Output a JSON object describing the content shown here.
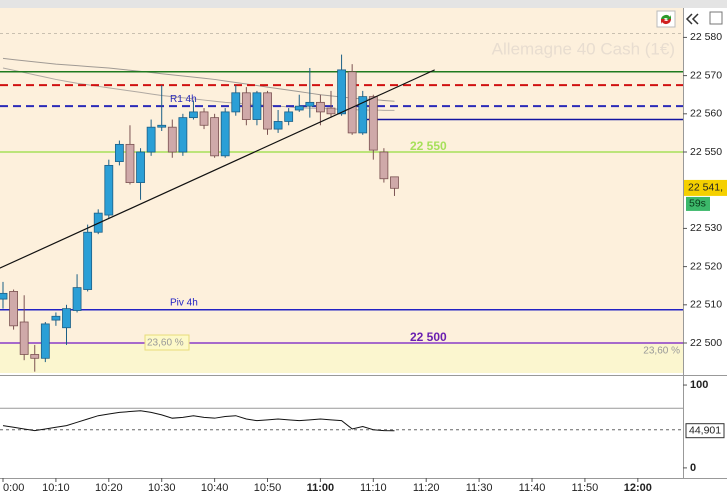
{
  "chart_data": {
    "type": "candlestick",
    "instrument": "Allemagne 40 Cash (1€)",
    "categories": [
      null,
      null,
      null,
      null,
      null,
      null,
      null,
      null,
      null,
      null,
      null,
      null,
      null,
      null,
      null,
      null,
      null,
      null,
      null,
      null,
      null,
      null,
      null,
      null,
      null,
      null,
      null,
      null,
      null,
      null,
      null,
      null,
      null,
      null,
      null,
      null,
      null,
      null
    ],
    "open": [
      22511.5,
      22513.5,
      22505.5,
      22497,
      22496,
      22506,
      22504,
      22508.5,
      22514,
      22529,
      22533.5,
      22547.5,
      22552,
      22542,
      22550,
      22556.5,
      22556.5,
      22550,
      22559,
      22560.5,
      22559,
      22549,
      22560.5,
      22565.5,
      22558.5,
      22565.5,
      22556,
      22558,
      22561,
      22562,
      22563,
      22561.5,
      22560,
      22571,
      22555,
      22564.5,
      22550,
      22543.5
    ],
    "high": [
      22516,
      22514,
      22512.5,
      22499.5,
      22505.5,
      22508,
      22510,
      22518,
      22531,
      22535,
      22548,
      22553,
      22557,
      22551,
      22558.5,
      22567.5,
      22558.5,
      22560,
      22563.5,
      22561.5,
      22560,
      22561.5,
      22567.5,
      22567,
      22566,
      22566,
      22561,
      22561.5,
      22565,
      22572,
      22565,
      22566,
      22575.5,
      22573,
      22566,
      22565,
      22551,
      22543.5
    ],
    "low": [
      22509,
      22503.5,
      22495.5,
      22492.5,
      22495,
      22504.5,
      22499.5,
      22508,
      22513.5,
      22528.5,
      22532.5,
      22546.5,
      22541.5,
      22537.5,
      22549,
      22555.5,
      22548.5,
      22549,
      22558.5,
      22556,
      22548.5,
      22548.5,
      22559.5,
      22557,
      22557,
      22554.5,
      22555,
      22557,
      22560.5,
      22559,
      22557,
      22559,
      22559.5,
      22554.5,
      22554.5,
      22548,
      22542,
      22538.5
    ],
    "close": [
      22513,
      22504.5,
      22497,
      22496,
      22505,
      22507,
      22509,
      22514.5,
      22529,
      22534,
      22546.5,
      22552,
      22542,
      22550,
      22556.5,
      22557,
      22550,
      22559,
      22560.5,
      22557,
      22549,
      22560.5,
      22565.5,
      22558.5,
      22565.5,
      22556,
      22558,
      22560.5,
      22562,
      22563,
      22560.5,
      22560,
      22571.5,
      22555,
      22564.5,
      22550.5,
      22543,
      22540.5
    ],
    "up_color": "#2b9fd6",
    "down_color": "#cfa9a9",
    "moving_averages": [
      {
        "color": "#a09a94",
        "values": [
          22574.5,
          22574.2,
          22573.9,
          22573.6,
          22573.3,
          22573.0,
          22572.8,
          22572.6,
          22572.4,
          22572.2,
          22572.0,
          22571.7,
          22571.4,
          22571.1,
          22570.8,
          22570.5,
          22570.2,
          22569.9,
          22569.6,
          22569.3,
          22569.0,
          22568.6,
          22568.2,
          22567.8,
          22567.4,
          22567.0,
          22566.6,
          22566.2,
          22565.8,
          22565.4,
          22565.0,
          22564.7,
          22564.4,
          22564.1,
          22563.9,
          22563.7,
          22563.5,
          22563.3
        ]
      },
      {
        "color": "#b0a9a2",
        "values": [
          22572.0,
          22571.4,
          22570.8,
          22570.2,
          22569.6,
          22569.0,
          22568.5,
          22568.0,
          22567.6,
          22567.2,
          22566.8,
          22566.4,
          22566.0,
          22565.6,
          22565.2,
          22564.8,
          22564.5,
          22564.2,
          22563.9,
          22563.6,
          22563.3,
          22563.0,
          22562.8,
          22562.6,
          22562.4,
          22562.2,
          22562.0,
          22561.8,
          22561.6,
          22561.5,
          22561.4,
          22561.3,
          22561.2,
          22561.1,
          22561.0,
          22561.0,
          22560.9,
          22560.9
        ]
      }
    ],
    "trend_line": {
      "x": [
        -0.3,
        40.8
      ],
      "y": [
        22519.6,
        22571.5
      ],
      "color": "#111111"
    },
    "levels": [
      {
        "value": 22571,
        "color": "#1f7a1f"
      },
      {
        "value": 22567.5,
        "color": "#d01010",
        "dash": true
      },
      {
        "value": 22562,
        "color": "#2a2ab8",
        "dash": true,
        "name": "R1 4h"
      },
      {
        "value": 22558.5,
        "color": "#1414a0",
        "from": 34
      },
      {
        "value": 22550,
        "color": "#a6e05a",
        "label": "22 550"
      },
      {
        "value": 22508.7,
        "color": "#2222c4",
        "name": "Piv 4h"
      },
      {
        "value": 22500,
        "color": "#8a3cc8",
        "label": "22 500",
        "label_color": "#6a1fb0"
      }
    ],
    "fib_label": {
      "value": 23.6,
      "label": "23,60 %"
    },
    "current_price": {
      "value": 22540.6,
      "label": "22 541,"
    },
    "countdown": "59s",
    "xlim": [
      -0.284,
      64.27
    ],
    "xticks": [
      {
        "value": 0,
        "label": "0:00"
      },
      {
        "value": 5,
        "label": "10:10"
      },
      {
        "value": 10,
        "label": "10:20"
      },
      {
        "value": 15,
        "label": "10:30"
      },
      {
        "value": 20,
        "label": "10:40"
      },
      {
        "value": 25,
        "label": "10:50"
      },
      {
        "value": 30,
        "label": "11:00",
        "bold": true
      },
      {
        "value": 35,
        "label": "11:10"
      },
      {
        "value": 40,
        "label": "11:20"
      },
      {
        "value": 45,
        "label": "11:30"
      },
      {
        "value": 50,
        "label": "11:40"
      },
      {
        "value": 55,
        "label": "11:50"
      },
      {
        "value": 60,
        "label": "12:00",
        "bold": true
      }
    ],
    "ylim": [
      22492.15,
      22587.7
    ],
    "yticks": [
      {
        "value": 22500,
        "label": "22 500"
      },
      {
        "value": 22510,
        "label": "22 510"
      },
      {
        "value": 22520,
        "label": "22 520"
      },
      {
        "value": 22530,
        "label": "22 530"
      },
      {
        "value": 22550,
        "label": "22 550"
      },
      {
        "value": 22560,
        "label": "22 560"
      },
      {
        "value": 22570,
        "label": "22 570"
      },
      {
        "value": 22580,
        "label": "22 580"
      }
    ],
    "indicator": {
      "color": "#111111",
      "values": [
        51,
        49,
        47,
        45,
        47,
        49,
        51,
        55,
        59,
        63,
        65,
        67,
        68,
        69,
        67,
        64,
        60,
        61,
        63,
        61,
        60,
        62,
        63,
        59,
        57,
        58,
        59,
        58,
        57,
        58,
        59,
        58,
        57,
        47,
        50,
        46,
        45,
        44.9
      ],
      "levels": [
        72,
        46
      ],
      "current": {
        "value": 44.901,
        "label": "44,901"
      },
      "ylim": [
        -12.2,
        108.5
      ],
      "yticks": [
        0,
        100
      ]
    }
  }
}
